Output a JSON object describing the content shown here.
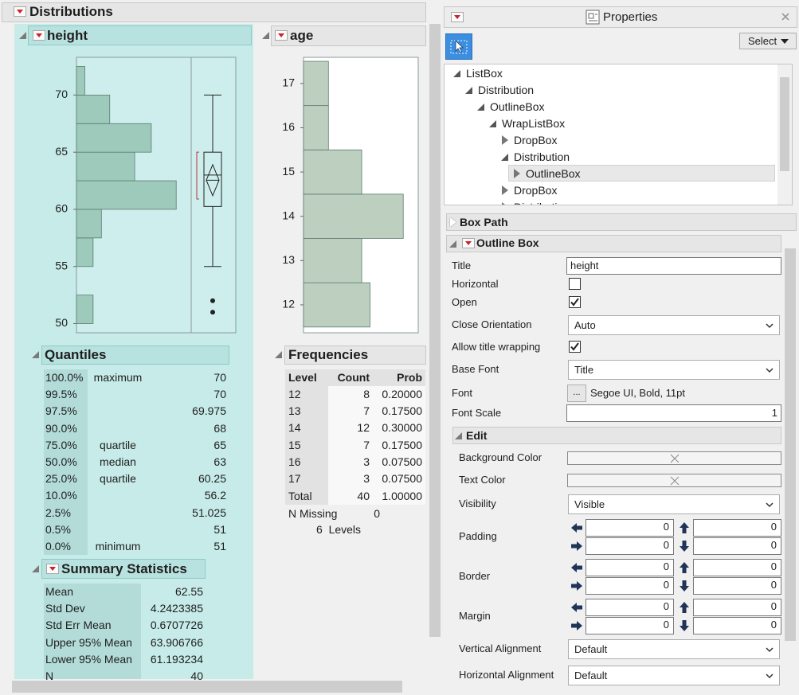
{
  "distributions": {
    "title": "Distributions"
  },
  "chart_data": [
    {
      "type": "histogram",
      "title": "height",
      "orientation": "horizontal",
      "bins": [
        50,
        52.5,
        55,
        57.5,
        60,
        62.5,
        65,
        67.5,
        70,
        72.5
      ],
      "values": [
        2,
        0,
        2,
        3,
        12,
        7,
        9,
        4,
        1
      ],
      "color": "#9dcabb",
      "ylim": [
        49.2,
        73.3
      ],
      "yticks": [
        50,
        55,
        60,
        65,
        70
      ],
      "xlim": [
        0,
        13.8
      ],
      "box_plot": {
        "lower_whisker": 55,
        "outliers": [
          52,
          51
        ],
        "shortest_half": [
          60.9,
          65
        ]
      }
    },
    {
      "type": "histogram",
      "title": "age",
      "orientation": "horizontal",
      "bins": [
        11.5,
        12.5,
        13.5,
        14.5,
        15.5,
        16.5,
        17.5
      ],
      "values": [
        8,
        7,
        12,
        7,
        3,
        3
      ],
      "color": "#bdcfbf",
      "ylim": [
        11.37,
        17.59
      ],
      "yticks": [
        12,
        13,
        14,
        15,
        16,
        17
      ],
      "xlim": [
        0,
        13.8
      ]
    }
  ],
  "quantiles": {
    "title": "Quantiles",
    "rows": [
      {
        "pct": "100.0%",
        "label": "maximum",
        "value": 70
      },
      {
        "pct": "99.5%",
        "value": 70
      },
      {
        "pct": "97.5%",
        "value": 69.975
      },
      {
        "pct": "90.0%",
        "value": 68
      },
      {
        "pct": "75.0%",
        "label": "quartile",
        "value": 65
      },
      {
        "pct": "50.0%",
        "label": "median",
        "value": 63
      },
      {
        "pct": "25.0%",
        "label": "quartile",
        "value": 60.25
      },
      {
        "pct": "10.0%",
        "value": 56.2
      },
      {
        "pct": "2.5%",
        "value": 51.025
      },
      {
        "pct": "0.5%",
        "value": 51
      },
      {
        "pct": "0.0%",
        "label": "minimum",
        "value": 51
      }
    ]
  },
  "summary_statistics": {
    "title": "Summary Statistics",
    "rows": [
      [
        "Mean",
        62.55
      ],
      [
        "Std Dev",
        4.2423385
      ],
      [
        "Std Err Mean",
        0.6707726
      ],
      [
        "Upper 95% Mean",
        63.906766
      ],
      [
        "Lower 95% Mean",
        61.193234
      ],
      [
        "N",
        40
      ]
    ]
  },
  "frequencies": {
    "title": "Frequencies",
    "columns": [
      "Level",
      "Count",
      "Prob"
    ],
    "levels": [
      "12",
      "13",
      "14",
      "15",
      "16",
      "17"
    ],
    "probs": [
      "0.20000",
      "0.17500",
      "0.30000",
      "0.17500",
      "0.07500",
      "0.07500"
    ],
    "total": {
      "label": "Total",
      "count": 40,
      "prob": "1.00000"
    },
    "n_missing": {
      "label": "N Missing",
      "value": 0
    },
    "levels_note": "6  Levels"
  },
  "properties": {
    "title": "Properties",
    "select": "Select",
    "tree": [
      {
        "label": "ListBox",
        "depth": 0,
        "open": true
      },
      {
        "label": "Distribution",
        "depth": 1,
        "open": true
      },
      {
        "label": "OutlineBox",
        "depth": 2,
        "open": true
      },
      {
        "label": "WrapListBox",
        "depth": 3,
        "open": true
      },
      {
        "label": "DropBox",
        "depth": 4,
        "open": false
      },
      {
        "label": "Distribution",
        "depth": 4,
        "open": true
      },
      {
        "label": "OutlineBox",
        "depth": 5,
        "open": false,
        "selected": true
      },
      {
        "label": "DropBox",
        "depth": 4,
        "open": false
      },
      {
        "label": "Distribution",
        "depth": 4,
        "open": false
      }
    ],
    "box_path": "Box Path",
    "outline_box": {
      "title": "Outline Box",
      "fields": [
        {
          "label": "Title",
          "kind": "text",
          "value": "height"
        },
        {
          "label": "Horizontal",
          "kind": "check",
          "checked": false
        },
        {
          "label": "Open",
          "kind": "check",
          "checked": true
        },
        {
          "label": "Close Orientation",
          "kind": "select",
          "value": "Auto"
        },
        {
          "label": "Allow title wrapping",
          "kind": "check",
          "checked": true
        },
        {
          "label": "Base Font",
          "kind": "select",
          "value": "Title"
        },
        {
          "label": "Font",
          "kind": "font",
          "button": "...",
          "value": "Segoe UI, Bold, 11pt"
        },
        {
          "label": "Font Scale",
          "kind": "number",
          "value": 1
        }
      ]
    },
    "edit": {
      "title": "Edit",
      "fields": [
        {
          "label": "Background Color",
          "kind": "color"
        },
        {
          "label": "Text Color",
          "kind": "color"
        },
        {
          "label": "Visibility",
          "kind": "select",
          "value": "Visible"
        },
        {
          "label": "Padding",
          "kind": "spacing",
          "values": [
            0,
            0,
            0,
            0
          ]
        },
        {
          "label": "Border",
          "kind": "spacing",
          "values": [
            0,
            0,
            0,
            0
          ]
        },
        {
          "label": "Margin",
          "kind": "spacing",
          "values": [
            0,
            0,
            0,
            0
          ]
        },
        {
          "label": "Vertical Alignment",
          "kind": "select",
          "value": "Default"
        },
        {
          "label": "Horizontal Alignment",
          "kind": "select",
          "value": "Default"
        }
      ]
    }
  }
}
